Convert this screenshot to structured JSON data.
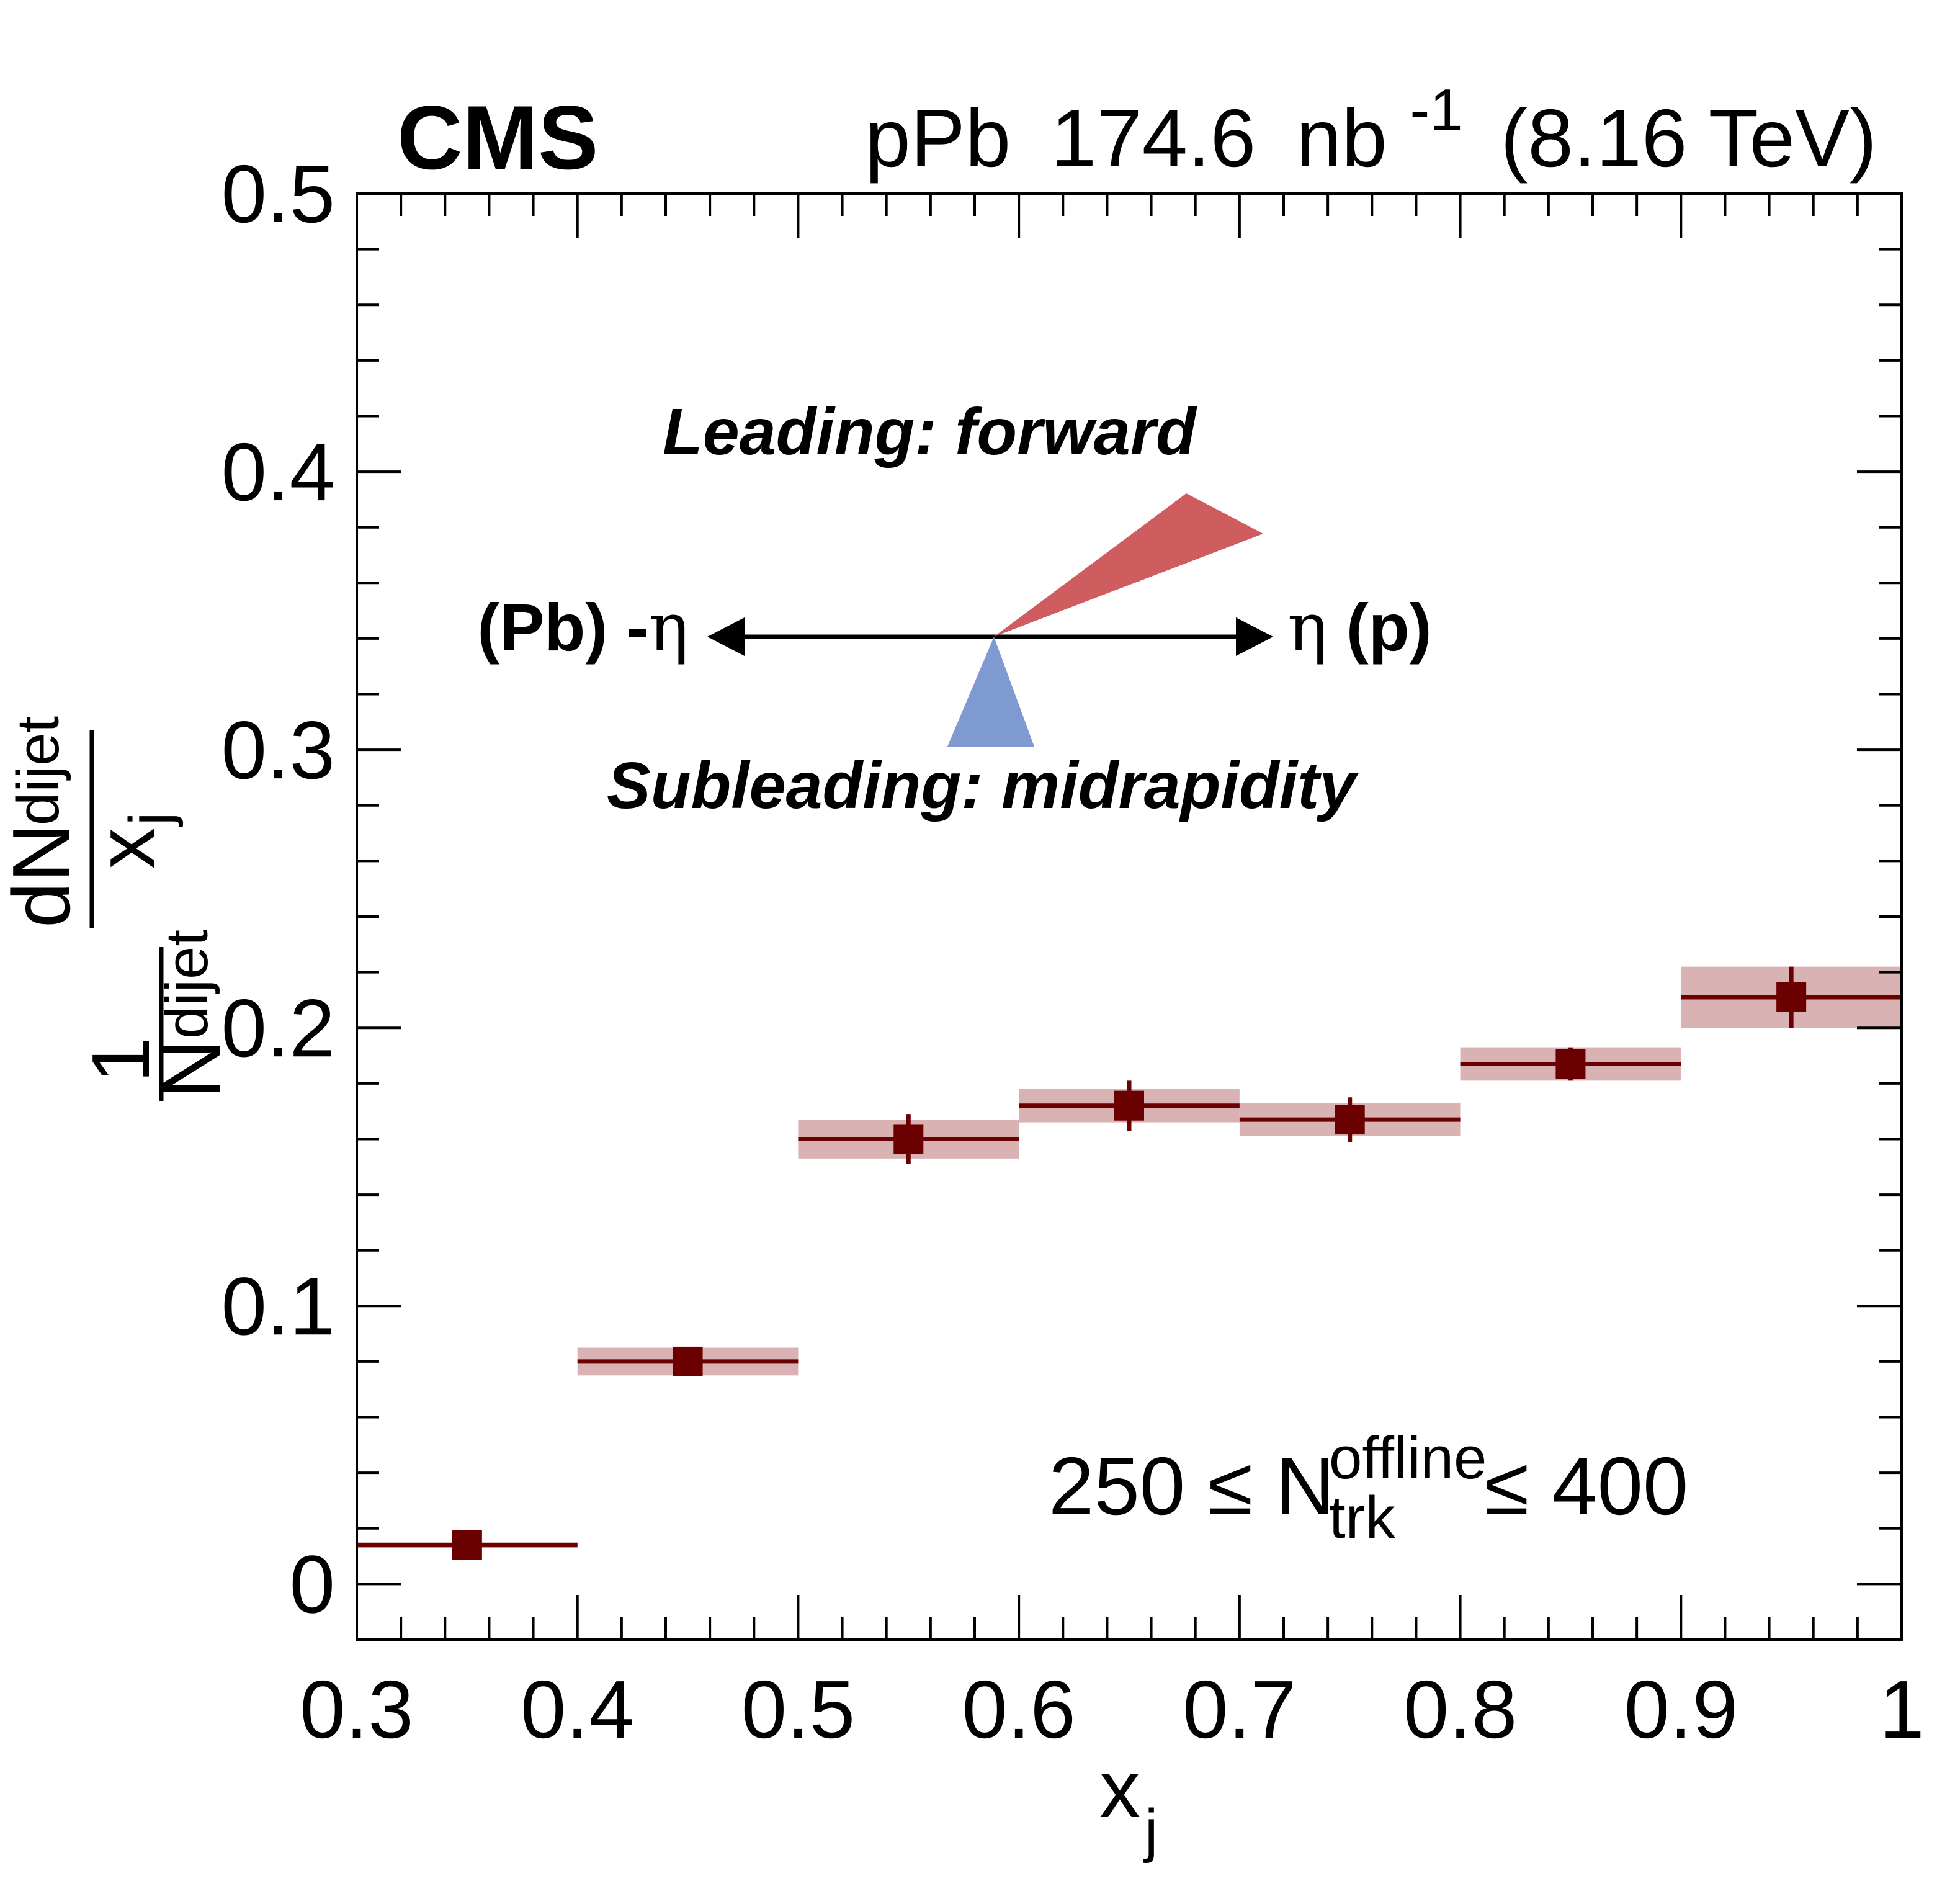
{
  "header": {
    "experiment": "CMS",
    "system": "pPb",
    "luminosity": "174.6",
    "lumi_unit": "nb",
    "lumi_exponent": "-1",
    "energy": "(8.16 TeV)"
  },
  "diagram": {
    "leading_label": "Leading: forward",
    "subleading_label": "Subleading: midrapidity",
    "left_label_text": "(Pb) -",
    "left_label_eta": "η",
    "right_label_eta": "η",
    "right_label_text": " (p)",
    "leading_color": "#cf5c5f",
    "subleading_color": "#7f9ad1"
  },
  "selection": {
    "prefix": "250 ≤ N",
    "superscript": "offline",
    "subscript": "trk",
    "suffix": "≤ 400"
  },
  "axes": {
    "x_title_main": "x",
    "x_title_sub": "j",
    "y_title_one": "1",
    "y_title_N": "N",
    "y_title_N_sub": "dijet",
    "y_title_dN": "dN",
    "y_title_dN_sub": "dijet",
    "y_title_x": "x",
    "y_title_x_sub": "j",
    "x_tick_labels": [
      "0.3",
      "0.4",
      "0.5",
      "0.6",
      "0.7",
      "0.8",
      "0.9",
      "1"
    ],
    "y_tick_labels": [
      "0",
      "0.1",
      "0.2",
      "0.3",
      "0.4",
      "0.5"
    ]
  },
  "chart_data": {
    "type": "scatter",
    "xlabel": "x_j",
    "ylabel": "1/N_dijet dN_dijet/x_j",
    "xlim": [
      0.3,
      1.0
    ],
    "ylim": [
      -0.02,
      0.5
    ],
    "grid": false,
    "x_bin_edges": [
      0.3,
      0.4,
      0.5,
      0.6,
      0.7,
      0.8,
      0.9,
      1.0
    ],
    "x": [
      0.35,
      0.45,
      0.55,
      0.65,
      0.75,
      0.85,
      0.95
    ],
    "y": [
      0.014,
      0.08,
      0.16,
      0.172,
      0.167,
      0.187,
      0.211
    ],
    "stat_err": [
      0.001,
      0.004,
      0.009,
      0.009,
      0.008,
      0.006,
      0.011
    ],
    "syst_err": [
      0.001,
      0.005,
      0.007,
      0.006,
      0.006,
      0.006,
      0.011
    ],
    "marker_color": "#6b0000",
    "syst_band_color": "#d9b3b3"
  }
}
